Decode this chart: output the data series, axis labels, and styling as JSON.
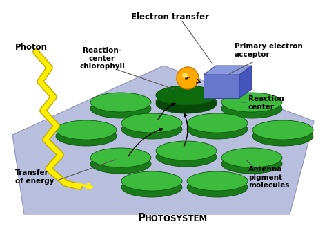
{
  "background_color": "#ffffff",
  "platform_color": "#b8bedd",
  "platform_edge_color": "#9090bb",
  "antenna_disk_top_color": "#3dbb3d",
  "antenna_disk_side_color": "#1a7a1a",
  "reaction_center_disk_top_color": "#0d6b0d",
  "reaction_center_disk_side_color": "#084808",
  "photon_color": "#ffee00",
  "photon_outline_color": "#bbaa00",
  "electron_acceptor_color": "#5566cc",
  "electron_ball_color": "#ffaa00",
  "labels": {
    "electron_transfer": "Electron transfer",
    "reaction_center_chlorophyll": "Reaction-\ncenter\nchlorophyll",
    "photon": "Photon",
    "primary_electron_acceptor": "Primary electron\nacceptor",
    "reaction_center": "Reaction\ncenter",
    "transfer_of_energy": "Transfer\nof energy",
    "photosystem": "HOTOSYSTEM",
    "photosystem_P": "P",
    "antenna_pigment": "Antenna\npigment\nmolecules"
  },
  "figsize": [
    4.74,
    3.37
  ],
  "dpi": 100
}
